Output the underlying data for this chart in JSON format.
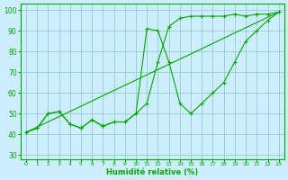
{
  "title": "",
  "xlabel": "Humidité relative (%)",
  "ylabel": "",
  "bg_color": "#cceeff",
  "grid_color": "#99cccc",
  "line_color": "#00aa00",
  "xlim": [
    -0.5,
    23.5
  ],
  "ylim": [
    28,
    103
  ],
  "xticks": [
    0,
    1,
    2,
    3,
    4,
    5,
    6,
    7,
    8,
    9,
    10,
    11,
    12,
    13,
    14,
    15,
    16,
    17,
    18,
    19,
    20,
    21,
    22,
    23
  ],
  "yticks": [
    30,
    40,
    50,
    60,
    70,
    80,
    90,
    100
  ],
  "line1_x": [
    0,
    1,
    2,
    3,
    4,
    5,
    6,
    7,
    8,
    9,
    10,
    11,
    12,
    13,
    14,
    15,
    16,
    17,
    18,
    19,
    20,
    21,
    22,
    23
  ],
  "line1_y": [
    41,
    43,
    50,
    51,
    45,
    43,
    47,
    44,
    46,
    46,
    50,
    91,
    90,
    75,
    55,
    50,
    55,
    60,
    65,
    75,
    85,
    90,
    95,
    99
  ],
  "line2_x": [
    0,
    1,
    2,
    3,
    4,
    5,
    6,
    7,
    8,
    9,
    10,
    11,
    12,
    13,
    14,
    15,
    16,
    17,
    18,
    19,
    20,
    21,
    22,
    23
  ],
  "line2_y": [
    41,
    43,
    50,
    51,
    45,
    43,
    47,
    44,
    46,
    46,
    50,
    55,
    75,
    92,
    96,
    97,
    97,
    97,
    97,
    98,
    97,
    98,
    98,
    99
  ],
  "line3_x": [
    0,
    23
  ],
  "line3_y": [
    41,
    99
  ]
}
